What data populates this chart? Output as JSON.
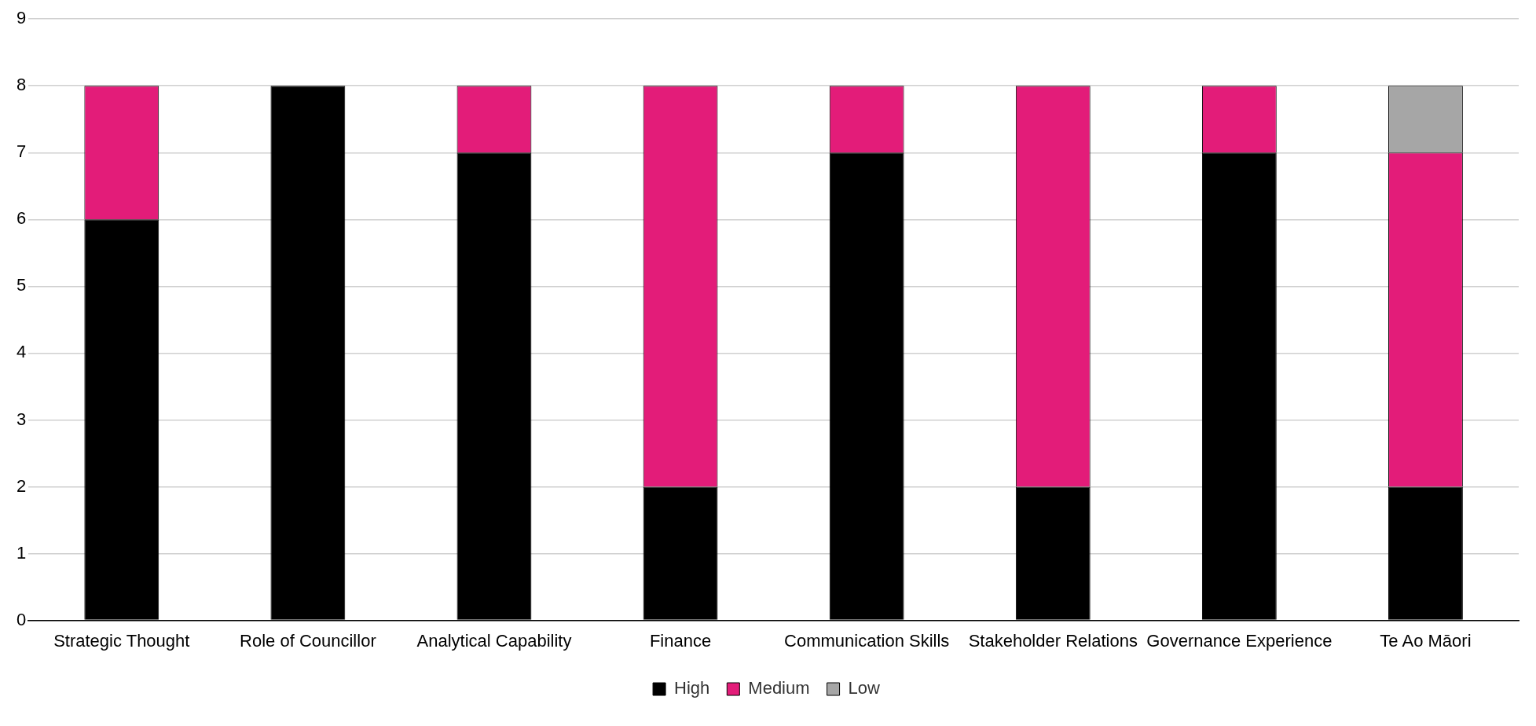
{
  "chart_data": {
    "type": "bar",
    "stacked": true,
    "categories": [
      "Strategic Thought",
      "Role of Councillor",
      "Analytical Capability",
      "Finance",
      "Communication Skills",
      "Stakeholder Relations",
      "Governance Experience",
      "Te Ao Māori"
    ],
    "series": [
      {
        "name": "High",
        "color": "#000000",
        "values": [
          6,
          8,
          7,
          2,
          7,
          2,
          7,
          2
        ]
      },
      {
        "name": "Medium",
        "color": "#e31c79",
        "values": [
          2,
          0,
          1,
          6,
          1,
          6,
          1,
          5
        ]
      },
      {
        "name": "Low",
        "color": "#a6a6a6",
        "values": [
          0,
          0,
          0,
          0,
          0,
          0,
          0,
          1
        ]
      }
    ],
    "ylim": [
      0,
      9
    ],
    "yticks": [
      0,
      1,
      2,
      3,
      4,
      5,
      6,
      7,
      8,
      9
    ],
    "grid": "y",
    "legend": "bottom"
  }
}
